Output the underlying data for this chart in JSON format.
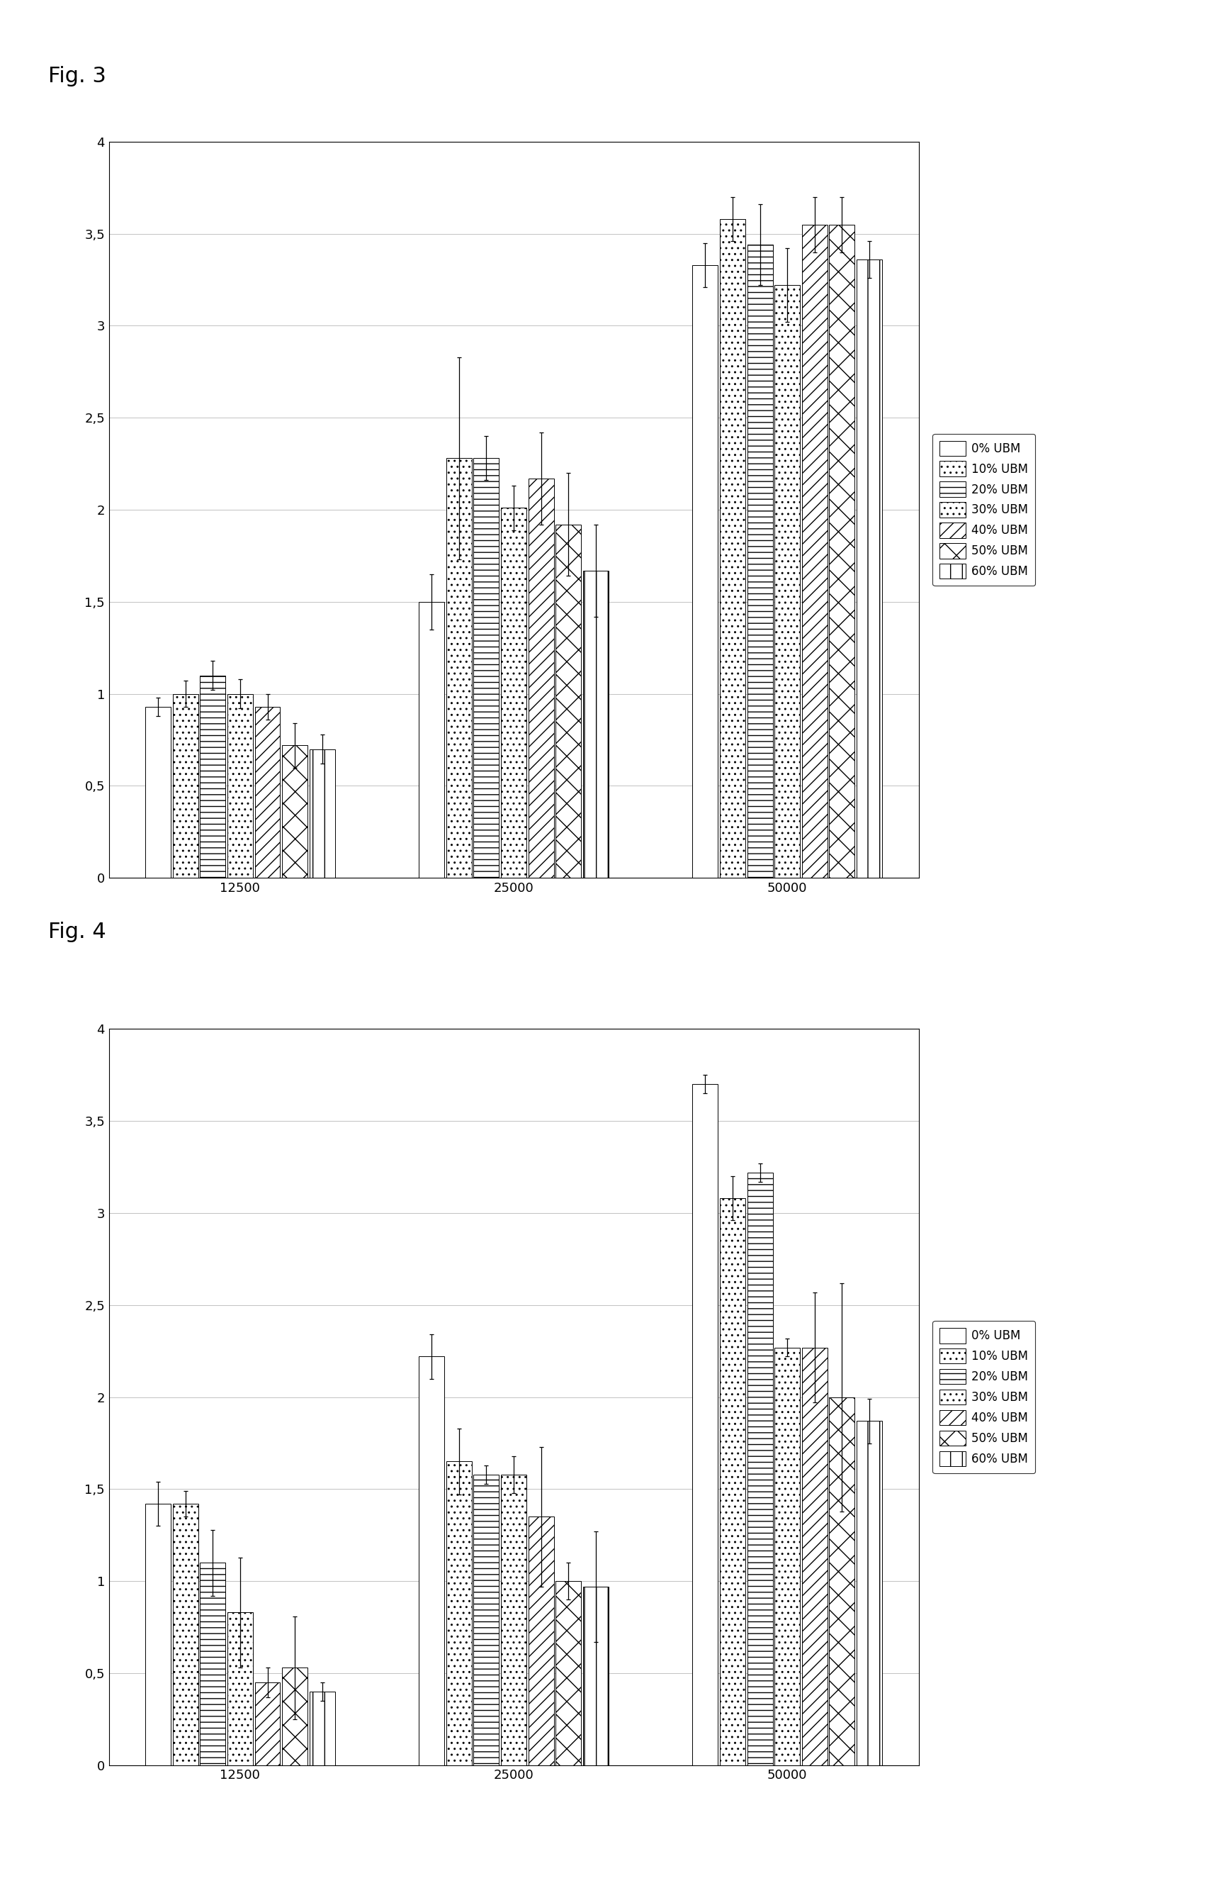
{
  "fig3_title": "Fig. 3",
  "fig4_title": "Fig. 4",
  "categories": [
    "12500",
    "25000",
    "50000"
  ],
  "legend_labels": [
    "0% UBM",
    "10% UBM",
    "20% UBM",
    "30% UBM",
    "40% UBM",
    "50% UBM",
    "60% UBM"
  ],
  "fig3_values": [
    [
      0.93,
      1.5,
      3.33
    ],
    [
      1.0,
      2.28,
      3.58
    ],
    [
      1.1,
      2.28,
      3.44
    ],
    [
      1.0,
      2.01,
      3.22
    ],
    [
      0.93,
      2.17,
      3.55
    ],
    [
      0.72,
      1.92,
      3.55
    ],
    [
      0.7,
      1.67,
      3.36
    ]
  ],
  "fig3_errors": [
    [
      0.05,
      0.15,
      0.12
    ],
    [
      0.07,
      0.55,
      0.12
    ],
    [
      0.08,
      0.12,
      0.22
    ],
    [
      0.08,
      0.12,
      0.2
    ],
    [
      0.07,
      0.25,
      0.15
    ],
    [
      0.12,
      0.28,
      0.15
    ],
    [
      0.08,
      0.25,
      0.1
    ]
  ],
  "fig4_values": [
    [
      1.42,
      2.22,
      3.7
    ],
    [
      1.42,
      1.65,
      3.08
    ],
    [
      1.1,
      1.58,
      3.22
    ],
    [
      0.83,
      1.58,
      2.27
    ],
    [
      0.45,
      1.35,
      2.27
    ],
    [
      0.53,
      1.0,
      2.0
    ],
    [
      0.4,
      0.97,
      1.87
    ]
  ],
  "fig4_errors": [
    [
      0.12,
      0.12,
      0.05
    ],
    [
      0.07,
      0.18,
      0.12
    ],
    [
      0.18,
      0.05,
      0.05
    ],
    [
      0.3,
      0.1,
      0.05
    ],
    [
      0.08,
      0.38,
      0.3
    ],
    [
      0.28,
      0.1,
      0.62
    ],
    [
      0.05,
      0.3,
      0.12
    ]
  ],
  "ylim": [
    0,
    4
  ],
  "ytick_vals": [
    0,
    0.5,
    1.0,
    1.5,
    2.0,
    2.5,
    3.0,
    3.5,
    4.0
  ],
  "ytick_labels": [
    "0",
    "0,5",
    "1",
    "1,5",
    "2",
    "2,5",
    "3",
    "3,5",
    "4"
  ],
  "bg_color": "#ffffff",
  "fig_label_fontsize": 22,
  "tick_fontsize": 13,
  "legend_fontsize": 12
}
